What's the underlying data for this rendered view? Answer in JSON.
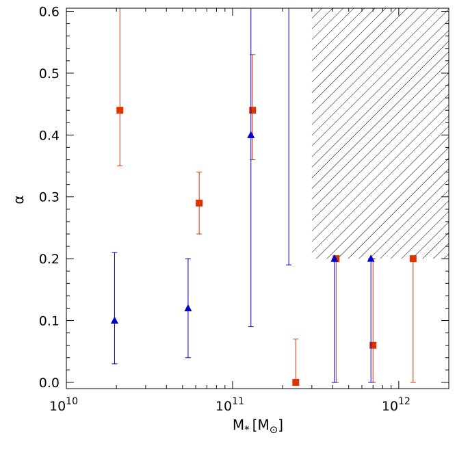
{
  "chart_data": {
    "type": "scatter",
    "xscale": "log",
    "xlim": [
      10000000000,
      2000000000000
    ],
    "ylim": [
      -0.01,
      0.605
    ],
    "xlabel": "M",
    "xlabel_sub": "*",
    "xlabel_unit_open": "[M",
    "xlabel_unit_sub": "⊙",
    "xlabel_unit_close": "]",
    "ylabel": "α",
    "x_ticks": [
      {
        "value": 10000000000,
        "base": "10",
        "exp": "10"
      },
      {
        "value": 100000000000,
        "base": "10",
        "exp": "11"
      },
      {
        "value": 1000000000000,
        "base": "10",
        "exp": "12"
      }
    ],
    "y_ticks": [
      {
        "value": 0.0,
        "label": "0.0"
      },
      {
        "value": 0.1,
        "label": "0.1"
      },
      {
        "value": 0.2,
        "label": "0.2"
      },
      {
        "value": 0.3,
        "label": "0.3"
      },
      {
        "value": 0.4,
        "label": "0.4"
      },
      {
        "value": 0.5,
        "label": "0.5"
      },
      {
        "value": 0.6,
        "label": "0.6"
      }
    ],
    "excluded_region": {
      "x": [
        300000000000,
        2000000000000
      ],
      "y": [
        0.2,
        0.605
      ],
      "pattern": "hatched"
    },
    "series": [
      {
        "marker": "square",
        "color": "#dd3300",
        "points": [
          {
            "x": 21000000000,
            "y": 0.44,
            "ylo": 0.35,
            "yhi": 0.605
          },
          {
            "x": 63000000000,
            "y": 0.29,
            "ylo": 0.24,
            "yhi": 0.34
          },
          {
            "x": 132000000000,
            "y": 0.44,
            "ylo": 0.36,
            "yhi": 0.53
          },
          {
            "x": 240000000000,
            "y": 0.0,
            "ylo": 0.0,
            "yhi": 0.07
          },
          {
            "x": 420000000000,
            "y": 0.2,
            "ylo": 0.0,
            "yhi": 0.2
          },
          {
            "x": 700000000000,
            "y": 0.06,
            "ylo": 0.0,
            "yhi": 0.2
          },
          {
            "x": 1220000000000,
            "y": 0.2,
            "ylo": 0.0,
            "yhi": 0.2
          }
        ]
      },
      {
        "marker": "triangle",
        "color": "#0000cc",
        "points": [
          {
            "x": 19500000000,
            "y": 0.1,
            "ylo": 0.03,
            "yhi": 0.21
          },
          {
            "x": 54000000000,
            "y": 0.12,
            "ylo": 0.04,
            "yhi": 0.2
          },
          {
            "x": 129000000000,
            "y": 0.4,
            "ylo": 0.09,
            "yhi": 0.605
          },
          {
            "x": 218000000000,
            "y": null,
            "ylo": 0.19,
            "yhi": 0.605
          },
          {
            "x": 410000000000,
            "y": 0.2,
            "ylo": 0.0,
            "yhi": 0.2
          },
          {
            "x": 680000000000,
            "y": 0.2,
            "ylo": 0.0,
            "yhi": 0.2
          }
        ]
      }
    ]
  }
}
